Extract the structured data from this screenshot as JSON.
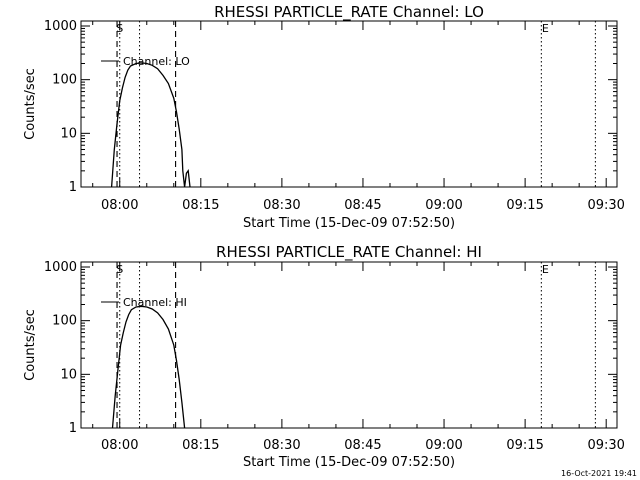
{
  "timestamp": "16-Oct-2021 19:41",
  "chart_data": [
    {
      "type": "line",
      "title": "RHESSI PARTICLE_RATE Channel: LO",
      "xlabel": "Start Time (15-Dec-09 07:52:50)",
      "ylabel": "Counts/sec",
      "y_scale": "log",
      "ylim": [
        1,
        1000
      ],
      "xlim": [
        "07:52:50",
        "09:32:00"
      ],
      "x_tick_labels": [
        "08:00",
        "08:15",
        "08:30",
        "08:45",
        "09:00",
        "09:15",
        "09:30"
      ],
      "y_tick_labels": [
        "1000",
        "100",
        "10",
        "1"
      ],
      "legend": {
        "label": "Channel: LO",
        "position": "top-left"
      },
      "markers": {
        "start": "S",
        "end": "E"
      },
      "marker_times": {
        "S": "08:00",
        "E": "09:18",
        "dashed": [
          "07:59:30",
          "08:10:20"
        ],
        "dotted": [
          "08:00",
          "08:03:40",
          "09:18",
          "09:28"
        ]
      },
      "series": [
        {
          "x": [
            "07:58:30",
            "07:59:00",
            "07:59:30",
            "08:00:00",
            "08:00:30",
            "08:01:00",
            "08:01:30",
            "08:02:00",
            "08:03:00",
            "08:04:00",
            "08:05:00",
            "08:06:00",
            "08:07:00",
            "08:08:00",
            "08:09:00",
            "08:10:00",
            "08:10:30",
            "08:11:00",
            "08:11:30",
            "08:11:40",
            "08:12:00",
            "08:12:20",
            "08:12:40",
            "08:13:00"
          ],
          "y": [
            1,
            5,
            15,
            40,
            70,
            110,
            150,
            180,
            200,
            205,
            200,
            185,
            160,
            120,
            85,
            45,
            25,
            12,
            5,
            2,
            1,
            1.8,
            2,
            1
          ]
        }
      ]
    },
    {
      "type": "line",
      "title": "RHESSI PARTICLE_RATE Channel: HI",
      "xlabel": "Start Time (15-Dec-09 07:52:50)",
      "ylabel": "Counts/sec",
      "y_scale": "log",
      "ylim": [
        1,
        1000
      ],
      "xlim": [
        "07:52:50",
        "09:32:00"
      ],
      "x_tick_labels": [
        "08:00",
        "08:15",
        "08:30",
        "08:45",
        "09:00",
        "09:15",
        "09:30"
      ],
      "y_tick_labels": [
        "1000",
        "100",
        "10",
        "1"
      ],
      "legend": {
        "label": "Channel: HI",
        "position": "top-left"
      },
      "markers": {
        "start": "S",
        "end": "E"
      },
      "marker_times": {
        "S": "08:00",
        "E": "09:18",
        "dashed": [
          "07:59:30",
          "08:10:20"
        ],
        "dotted": [
          "08:00",
          "08:03:40",
          "09:18",
          "09:28"
        ]
      },
      "series": [
        {
          "x": [
            "07:58:40",
            "07:59:10",
            "07:59:40",
            "08:00:10",
            "08:00:40",
            "08:01:10",
            "08:01:40",
            "08:02:10",
            "08:03:00",
            "08:04:00",
            "08:05:00",
            "08:06:00",
            "08:07:00",
            "08:08:00",
            "08:09:00",
            "08:10:00",
            "08:10:30",
            "08:11:00",
            "08:11:30",
            "08:12:00"
          ],
          "y": [
            1,
            4,
            12,
            35,
            60,
            95,
            130,
            160,
            180,
            185,
            180,
            165,
            140,
            105,
            70,
            35,
            18,
            8,
            3,
            1
          ]
        }
      ]
    }
  ]
}
